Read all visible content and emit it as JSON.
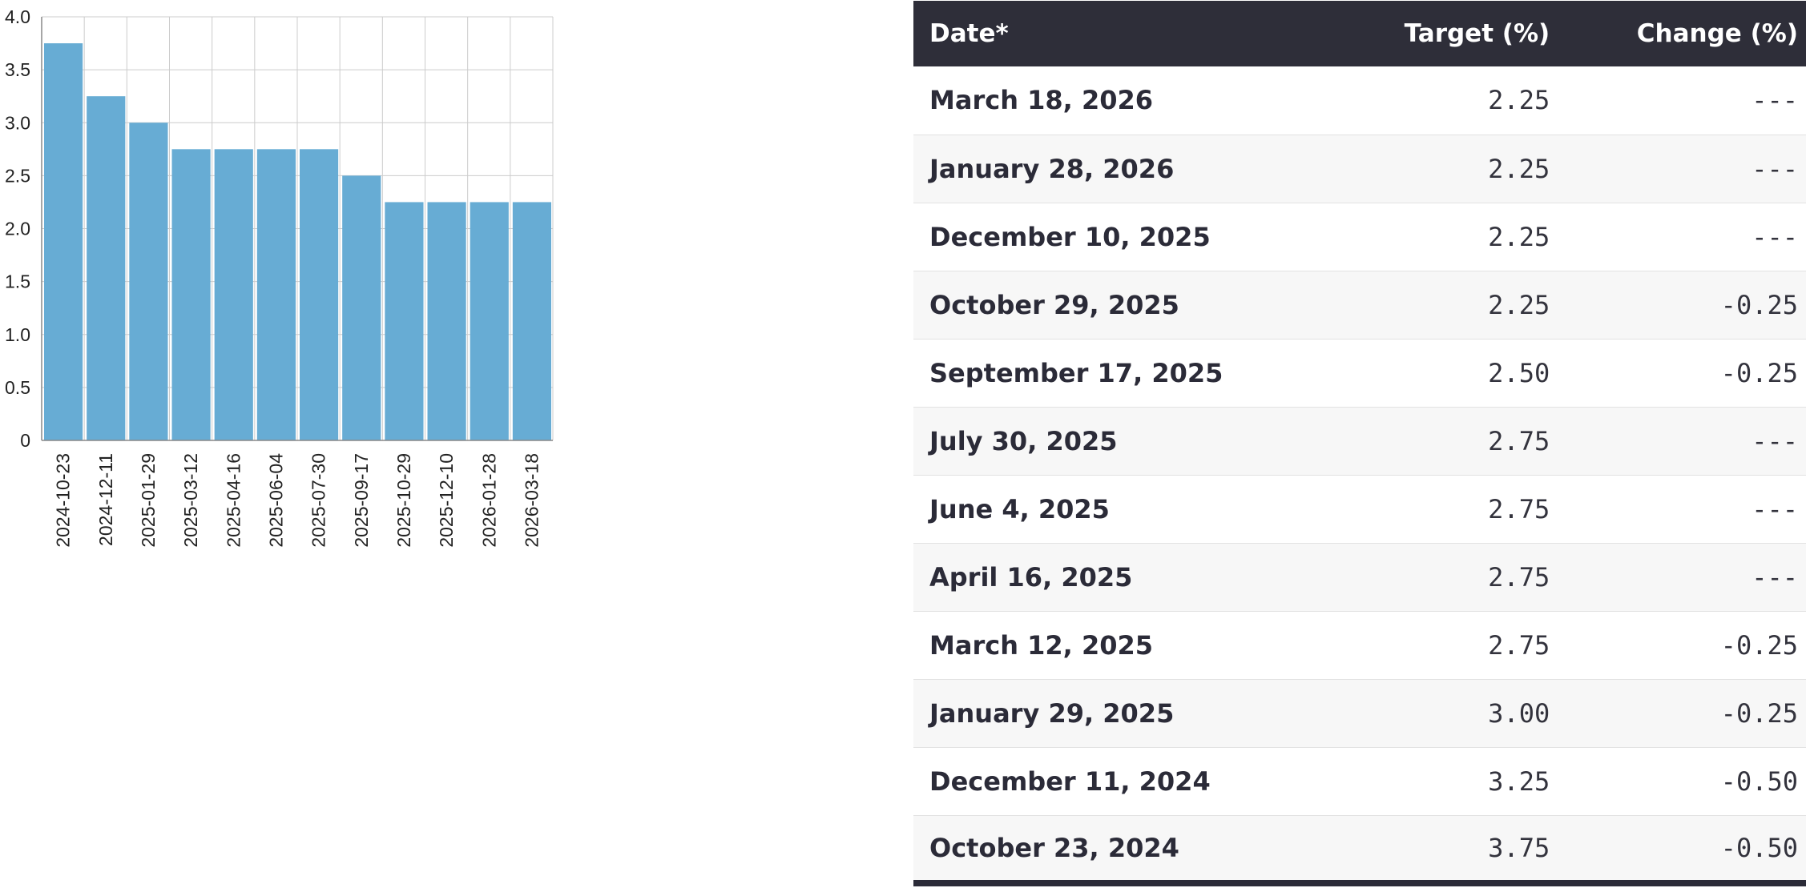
{
  "chart_data": {
    "type": "bar",
    "categories": [
      "2024-10-23",
      "2024-12-11",
      "2025-01-29",
      "2025-03-12",
      "2025-04-16",
      "2025-06-04",
      "2025-07-30",
      "2025-09-17",
      "2025-10-29",
      "2025-12-10",
      "2026-01-28",
      "2026-03-18"
    ],
    "values": [
      3.75,
      3.25,
      3.0,
      2.75,
      2.75,
      2.75,
      2.75,
      2.5,
      2.25,
      2.25,
      2.25,
      2.25
    ],
    "ylim": [
      0,
      4.0
    ],
    "yticks": [
      "0",
      "0.5",
      "1.0",
      "1.5",
      "2.0",
      "2.5",
      "3.0",
      "3.5",
      "4.0"
    ],
    "grid": true,
    "colors": {
      "bar": "#67acd4",
      "grid": "#cccccc",
      "axis": "#888888"
    }
  },
  "table": {
    "headers": {
      "date": "Date*",
      "target": "Target (%)",
      "change": "Change (%)"
    },
    "rows": [
      {
        "date": "March 18, 2026",
        "target": "2.25",
        "change": "---"
      },
      {
        "date": "January 28, 2026",
        "target": "2.25",
        "change": "---"
      },
      {
        "date": "December 10, 2025",
        "target": "2.25",
        "change": "---"
      },
      {
        "date": "October 29, 2025",
        "target": "2.25",
        "change": "-0.25"
      },
      {
        "date": "September 17, 2025",
        "target": "2.50",
        "change": "-0.25"
      },
      {
        "date": "July 30, 2025",
        "target": "2.75",
        "change": "---"
      },
      {
        "date": "June 4, 2025",
        "target": "2.75",
        "change": "---"
      },
      {
        "date": "April 16, 2025",
        "target": "2.75",
        "change": "---"
      },
      {
        "date": "March 12, 2025",
        "target": "2.75",
        "change": "-0.25"
      },
      {
        "date": "January 29, 2025",
        "target": "3.00",
        "change": "-0.25"
      },
      {
        "date": "December 11, 2024",
        "target": "3.25",
        "change": "-0.50"
      },
      {
        "date": "October 23, 2024",
        "target": "3.75",
        "change": "-0.50"
      }
    ]
  }
}
